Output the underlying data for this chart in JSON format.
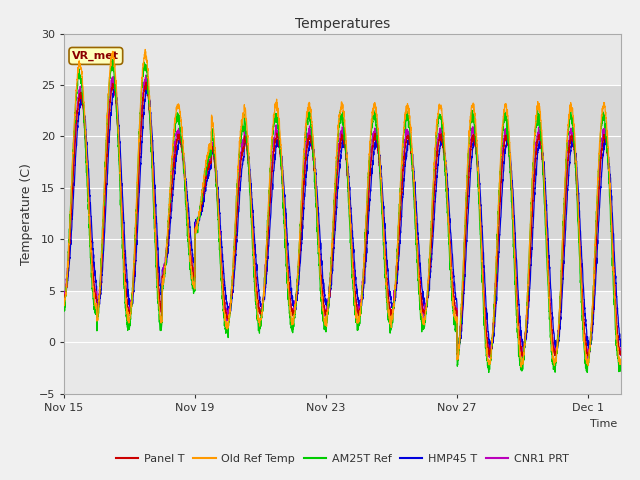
{
  "title": "Temperatures",
  "xlabel": "Time",
  "ylabel": "Temperature (C)",
  "ylim": [
    -5,
    30
  ],
  "yticks": [
    -5,
    0,
    5,
    10,
    15,
    20,
    25,
    30
  ],
  "shaded_region": [
    5,
    25
  ],
  "annotation_label": "VR_met",
  "series_colors": {
    "Panel T": "#cc0000",
    "Old Ref Temp": "#ff9900",
    "AM25T Ref": "#00cc00",
    "HMP45 T": "#0000dd",
    "CNR1 PRT": "#bb00bb"
  },
  "fig_bg": "#f0f0f0",
  "axes_bg": "#e8e8e8",
  "x_tick_labels": [
    "Nov 15",
    "Nov 19",
    "Nov 23",
    "Nov 27",
    "Dec 1"
  ],
  "x_tick_positions": [
    0,
    4,
    8,
    12,
    16
  ]
}
